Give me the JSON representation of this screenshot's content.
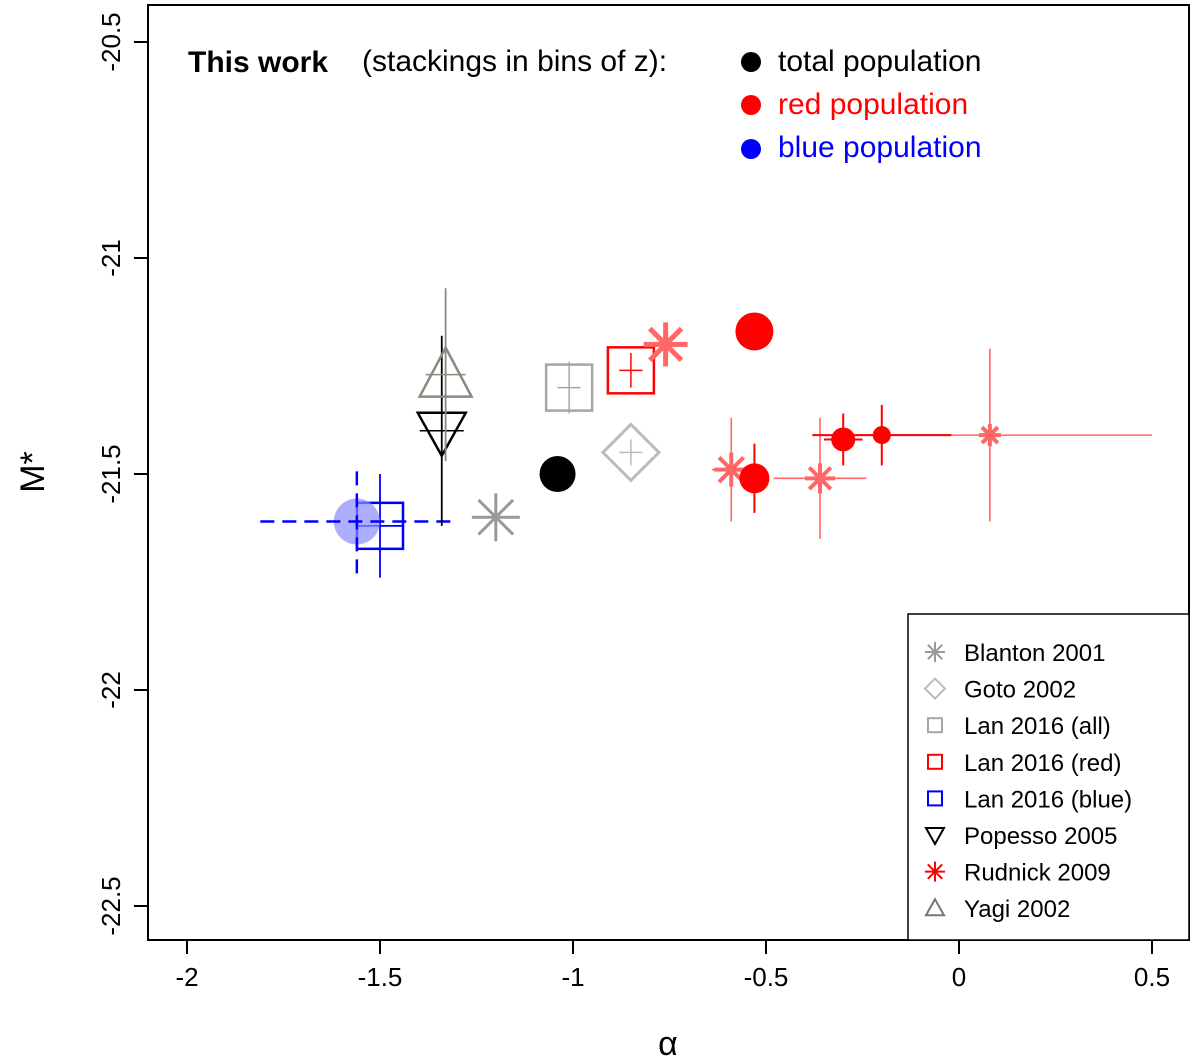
{
  "chart_data": {
    "type": "scatter",
    "xlabel": "α",
    "ylabel": "M*",
    "xlim": [
      -2.1,
      0.6
    ],
    "ylim": [
      -22.6,
      -20.5
    ],
    "y_inverted": true,
    "x_ticks": [
      -2,
      -1.5,
      -1,
      -0.5,
      0,
      0.5
    ],
    "x_tick_labels": [
      "-2",
      "-1.5",
      "-1",
      "-0.5",
      "0",
      "0.5"
    ],
    "y_ticks": [
      -20.5,
      -21,
      -21.5,
      -22,
      -22.5
    ],
    "y_tick_labels": [
      "-20.5",
      "-21",
      "-21.5",
      "-22",
      "-22.5"
    ],
    "annotation": {
      "bold_text": "This work",
      "text": "(stackings in bins of z):",
      "entries": [
        {
          "label": "total population",
          "color": "#000000"
        },
        {
          "label": "red population",
          "color": "#ff0000"
        },
        {
          "label": "blue population",
          "color": "#0000ff"
        }
      ]
    },
    "series": [
      {
        "group": "this-work-total",
        "marker": "filled-circle",
        "color": "#000000",
        "points": [
          {
            "x": -1.04,
            "y": -21.5
          }
        ]
      },
      {
        "group": "this-work-red",
        "marker": "filled-circle",
        "color": "#ff0000",
        "points": [
          {
            "x": -0.53,
            "y": -21.17,
            "xerr": 0,
            "yerr": 0
          },
          {
            "x": -0.53,
            "y": -21.51,
            "xerr": 0.03,
            "yerr": 0.08
          },
          {
            "x": -0.3,
            "y": -21.42,
            "xerr": 0.05,
            "yerr": 0.06
          },
          {
            "x": -0.2,
            "y": -21.41,
            "xerr": 0.18,
            "yerr": 0.07
          }
        ]
      },
      {
        "group": "this-work-blue",
        "marker": "filled-circle",
        "color": "#8c8cff",
        "points": [
          {
            "x": -1.56,
            "y": -21.61,
            "xerr": 0.25,
            "yerr": 0.12
          }
        ]
      },
      {
        "name": "Blanton 2001",
        "marker": "asterisk",
        "color": "#999999",
        "points": [
          {
            "x": -1.2,
            "y": -21.6
          }
        ]
      },
      {
        "name": "Goto 2002",
        "marker": "diamond",
        "color": "#bbbbbb",
        "points": [
          {
            "x": -0.85,
            "y": -21.45,
            "xerr": 0.03,
            "yerr": 0.03
          }
        ]
      },
      {
        "name": "Lan 2016 (all)",
        "marker": "square",
        "color": "#a6a6a6",
        "points": [
          {
            "x": -1.01,
            "y": -21.3,
            "xerr": 0.03,
            "yerr": 0.06
          }
        ]
      },
      {
        "name": "Lan 2016 (red)",
        "marker": "square",
        "color": "#ff0000",
        "points": [
          {
            "x": -0.85,
            "y": -21.26,
            "xerr": 0.03,
            "yerr": 0.04
          }
        ]
      },
      {
        "name": "Lan 2016 (blue)",
        "marker": "square",
        "color": "#0000ff",
        "points": [
          {
            "x": -1.5,
            "y": -21.62,
            "xerr": 0.06,
            "yerr": 0.12
          }
        ]
      },
      {
        "name": "Popesso 2005",
        "marker": "triangle-down",
        "color": "#000000",
        "points": [
          {
            "x": -1.34,
            "y": -21.4,
            "xerr": 0,
            "yerr": 0.22
          }
        ]
      },
      {
        "name": "Rudnick 2009",
        "marker": "asterisk",
        "color": "#ff6666",
        "points": [
          {
            "x": -0.76,
            "y": -21.2
          },
          {
            "x": -0.59,
            "y": -21.49,
            "xerr": 0.05,
            "yerr": 0.12
          },
          {
            "x": -0.36,
            "y": -21.51,
            "xerr": 0.12,
            "yerr": 0.14
          },
          {
            "x": 0.08,
            "y": -21.41,
            "xerr": 0.42,
            "yerr": 0.2
          }
        ]
      },
      {
        "name": "Yagi 2002",
        "marker": "triangle-up",
        "color": "#8a8a80",
        "points": [
          {
            "x": -1.33,
            "y": -21.27,
            "xerr": 0,
            "yerr": 0.2
          }
        ]
      }
    ],
    "legend": {
      "position": "bottom-right",
      "entries": [
        {
          "label": "Blanton 2001",
          "marker": "asterisk",
          "color": "#999999"
        },
        {
          "label": "Goto 2002",
          "marker": "diamond",
          "color": "#bbbbbb"
        },
        {
          "label": "Lan 2016 (all)",
          "marker": "square",
          "color": "#a6a6a6"
        },
        {
          "label": "Lan 2016 (red)",
          "marker": "square",
          "color": "#ff0000"
        },
        {
          "label": "Lan 2016 (blue)",
          "marker": "square",
          "color": "#0000ff"
        },
        {
          "label": "Popesso 2005",
          "marker": "triangle-down",
          "color": "#000000"
        },
        {
          "label": "Rudnick 2009",
          "marker": "asterisk",
          "color": "#ff0000"
        },
        {
          "label": "Yagi 2002",
          "marker": "triangle-up",
          "color": "#777777"
        }
      ]
    },
    "grid": false
  }
}
